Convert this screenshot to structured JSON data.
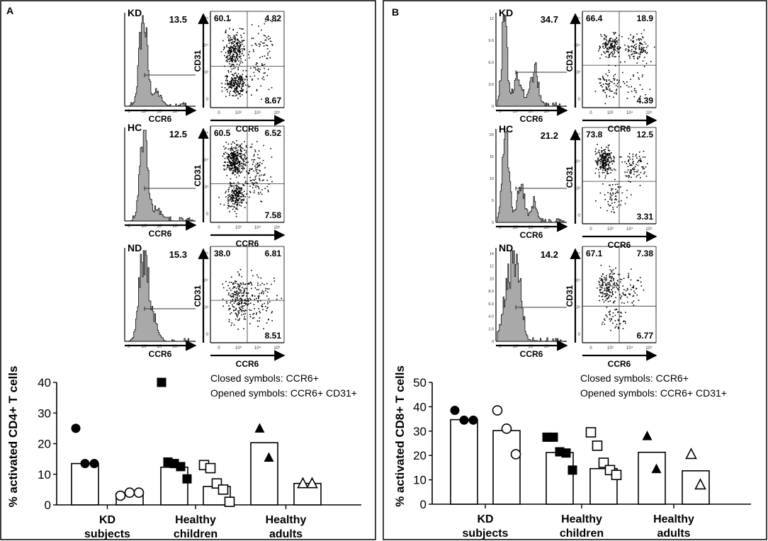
{
  "panels": [
    {
      "letter": "A",
      "facs": [
        {
          "group": "KD",
          "hist_value": "13.5",
          "scatter": {
            "ul": "60.1",
            "ur": "4.82",
            "lr": "8.67"
          },
          "x_label": "CCR6",
          "y_label": "CD31"
        },
        {
          "group": "HC",
          "hist_value": "12.5",
          "scatter": {
            "ul": "60.5",
            "ur": "6.52",
            "lr": "7.58"
          },
          "x_label": "CCR6",
          "y_label": "CD31"
        },
        {
          "group": "ND",
          "hist_value": "15.3",
          "scatter": {
            "ul": "38.0",
            "ur": "6.81",
            "lr": "8.51"
          },
          "x_label": "CCR6",
          "y_label": "CD31"
        }
      ]
    },
    {
      "letter": "B",
      "facs": [
        {
          "group": "KD",
          "hist_value": "34.7",
          "scatter": {
            "ul": "66.4",
            "ur": "18.9",
            "lr": "4.39"
          },
          "x_label": "CCR6",
          "y_label": "CD31"
        },
        {
          "group": "HC",
          "hist_value": "21.2",
          "scatter": {
            "ul": "73.8",
            "ur": "12.5",
            "lr": "3.31"
          },
          "x_label": "CCR6",
          "y_label": "CD31"
        },
        {
          "group": "ND",
          "hist_value": "14.2",
          "scatter": {
            "ul": "67.1",
            "ur": "7.38",
            "lr": "6.77"
          },
          "x_label": "CCR6",
          "y_label": "CD31"
        }
      ]
    }
  ],
  "hist_ticks": {
    "x": [
      "0",
      "10³",
      "10⁴",
      "10⁵",
      "10⁶"
    ],
    "b_kd_y": [
      "0",
      "3.0",
      "6.0",
      "9.0",
      "12"
    ],
    "b_hc_y": [
      "0",
      "5",
      "10",
      "15",
      "20"
    ],
    "b_nd_y": [
      "0",
      "2.0",
      "4.0",
      "6.0",
      "8.0",
      "10",
      "12",
      "14"
    ]
  },
  "scatter_ticks": {
    "x": [
      "0",
      "10³",
      "10⁴",
      "10⁵"
    ],
    "y": [
      "0",
      "10³",
      "10⁴",
      "10⁵"
    ]
  },
  "chart_data": [
    {
      "type": "bar",
      "title": "",
      "ylabel": "% activated CD4+ T cells",
      "xlabel": "",
      "ylim": [
        0,
        40
      ],
      "yticks": [
        "0",
        "10",
        "20",
        "30",
        "40"
      ],
      "categories": [
        "KD subjects",
        "Healthy children",
        "Healthy adults"
      ],
      "legend": [
        "Closed symbols: CCR6+",
        "Opened symbols: CCR6+ CD31+"
      ],
      "series": [
        {
          "name": "CCR6+",
          "filled": true,
          "bar_means": [
            13.5,
            12.3,
            20.3
          ],
          "points": [
            [
              25,
              13.5,
              13.5
            ],
            [
              40,
              14,
              13.5,
              12.5,
              8.5
            ],
            [
              25,
              15.5
            ]
          ]
        },
        {
          "name": "CCR6+ CD31+",
          "filled": false,
          "bar_means": [
            3.8,
            6.0,
            7.0
          ],
          "points": [
            [
              3,
              4,
              4
            ],
            [
              13,
              12,
              7,
              5,
              1
            ],
            [
              7,
              7
            ]
          ]
        }
      ],
      "markers": [
        "circle",
        "square",
        "triangle"
      ]
    },
    {
      "type": "bar",
      "title": "",
      "ylabel": "% activated CD8+ T cells",
      "xlabel": "",
      "ylim": [
        0,
        50
      ],
      "yticks": [
        "0",
        "10",
        "20",
        "30",
        "40",
        "50"
      ],
      "categories": [
        "KD subjects",
        "Healthy children",
        "Healthy adults"
      ],
      "legend": [
        "Closed symbols: CCR6+",
        "Opened symbols: CCR6+ CD31+"
      ],
      "series": [
        {
          "name": "CCR6+",
          "filled": true,
          "bar_means": [
            34.7,
            21.2,
            21.3
          ],
          "points": [
            [
              38.5,
              34.5,
              34.5
            ],
            [
              27.5,
              27.5,
              21.5,
              21,
              14
            ],
            [
              28,
              14.5
            ]
          ]
        },
        {
          "name": "CCR6+ CD31+",
          "filled": false,
          "bar_means": [
            30.2,
            14.6,
            13.7
          ],
          "points": [
            [
              38.5,
              31,
              20.5
            ],
            [
              29.5,
              24,
              17,
              14,
              12
            ],
            [
              20.5,
              8
            ]
          ]
        }
      ],
      "markers": [
        "circle",
        "square",
        "triangle"
      ]
    }
  ]
}
